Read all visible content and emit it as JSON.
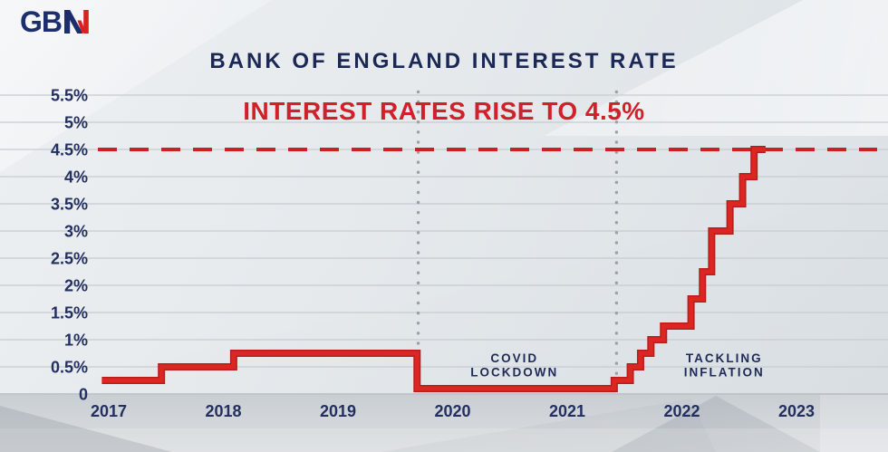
{
  "logo": {
    "gb_text": "GB",
    "n_icon": "gbn-n-icon"
  },
  "header": {
    "title": "BANK OF ENGLAND INTEREST RATE",
    "subtitle": "INTEREST RATES RISE TO 4.5%"
  },
  "colors": {
    "navy_text": "#232f61",
    "title_navy": "#1b2856",
    "subtitle_red": "#d2202a",
    "line_red": "#dd2522",
    "line_red_dark": "#b51e1c",
    "dashed_red": "#c92127",
    "gridline": "#c6ccd1",
    "baseline": "#b4bac0",
    "dotted_gray": "#9aa1a8",
    "logo_navy": "#1c2e6b",
    "logo_red": "#d6231f"
  },
  "chart_data": {
    "type": "line",
    "subtype": "step",
    "title": "BANK OF ENGLAND INTEREST RATE",
    "xlabel": "",
    "ylabel": "",
    "grid": "horizontal",
    "xlim": [
      2016.9,
      2023.55
    ],
    "ylim": [
      0,
      5.75
    ],
    "x_ticks": [
      {
        "label": "2017",
        "year": 2017
      },
      {
        "label": "2018",
        "year": 2018
      },
      {
        "label": "2019",
        "year": 2019
      },
      {
        "label": "2020",
        "year": 2020
      },
      {
        "label": "2021",
        "year": 2021
      },
      {
        "label": "2022",
        "year": 2022
      },
      {
        "label": "2023",
        "year": 2023
      }
    ],
    "y_ticks": [
      {
        "label": "5.5%",
        "value": 5.5
      },
      {
        "label": "5%",
        "value": 5.0
      },
      {
        "label": "4.5%",
        "value": 4.5
      },
      {
        "label": "4%",
        "value": 4.0
      },
      {
        "label": "3.5%",
        "value": 3.5
      },
      {
        "label": "3%",
        "value": 3.0
      },
      {
        "label": "2.5%",
        "value": 2.5
      },
      {
        "label": "2%",
        "value": 2.0
      },
      {
        "label": "1.5%",
        "value": 1.5
      },
      {
        "label": "1%",
        "value": 1.0
      },
      {
        "label": "0.5%",
        "value": 0.5
      },
      {
        "label": "0",
        "value": 0
      }
    ],
    "series": [
      {
        "name": "Bank of England base rate",
        "color": "#dd2522",
        "end_year": 2022.73,
        "points": [
          {
            "year": 2016.94,
            "rate": 0.25
          },
          {
            "year": 2017.46,
            "rate": 0.5
          },
          {
            "year": 2018.09,
            "rate": 0.75
          },
          {
            "year": 2019.69,
            "rate": 0.1
          },
          {
            "year": 2021.41,
            "rate": 0.25
          },
          {
            "year": 2021.55,
            "rate": 0.5
          },
          {
            "year": 2021.64,
            "rate": 0.75
          },
          {
            "year": 2021.73,
            "rate": 1.0
          },
          {
            "year": 2021.84,
            "rate": 1.25
          },
          {
            "year": 2022.08,
            "rate": 1.75
          },
          {
            "year": 2022.18,
            "rate": 2.25
          },
          {
            "year": 2022.26,
            "rate": 3.0
          },
          {
            "year": 2022.42,
            "rate": 3.5
          },
          {
            "year": 2022.53,
            "rate": 4.0
          },
          {
            "year": 2022.63,
            "rate": 4.5
          }
        ]
      }
    ],
    "reference_line": {
      "value": 4.5,
      "style": "dashed",
      "color": "#c92127"
    },
    "event_lines": [
      {
        "year": 2019.7
      },
      {
        "year": 2021.43
      }
    ],
    "annotations": [
      {
        "lines": [
          "COVID",
          "LOCKDOWN"
        ],
        "x_year": 2020.54,
        "y_rate": 0.583
      },
      {
        "lines": [
          "TACKLING",
          "INFLATION"
        ],
        "x_year": 2022.37,
        "y_rate": 0.583
      }
    ],
    "legend": null
  }
}
